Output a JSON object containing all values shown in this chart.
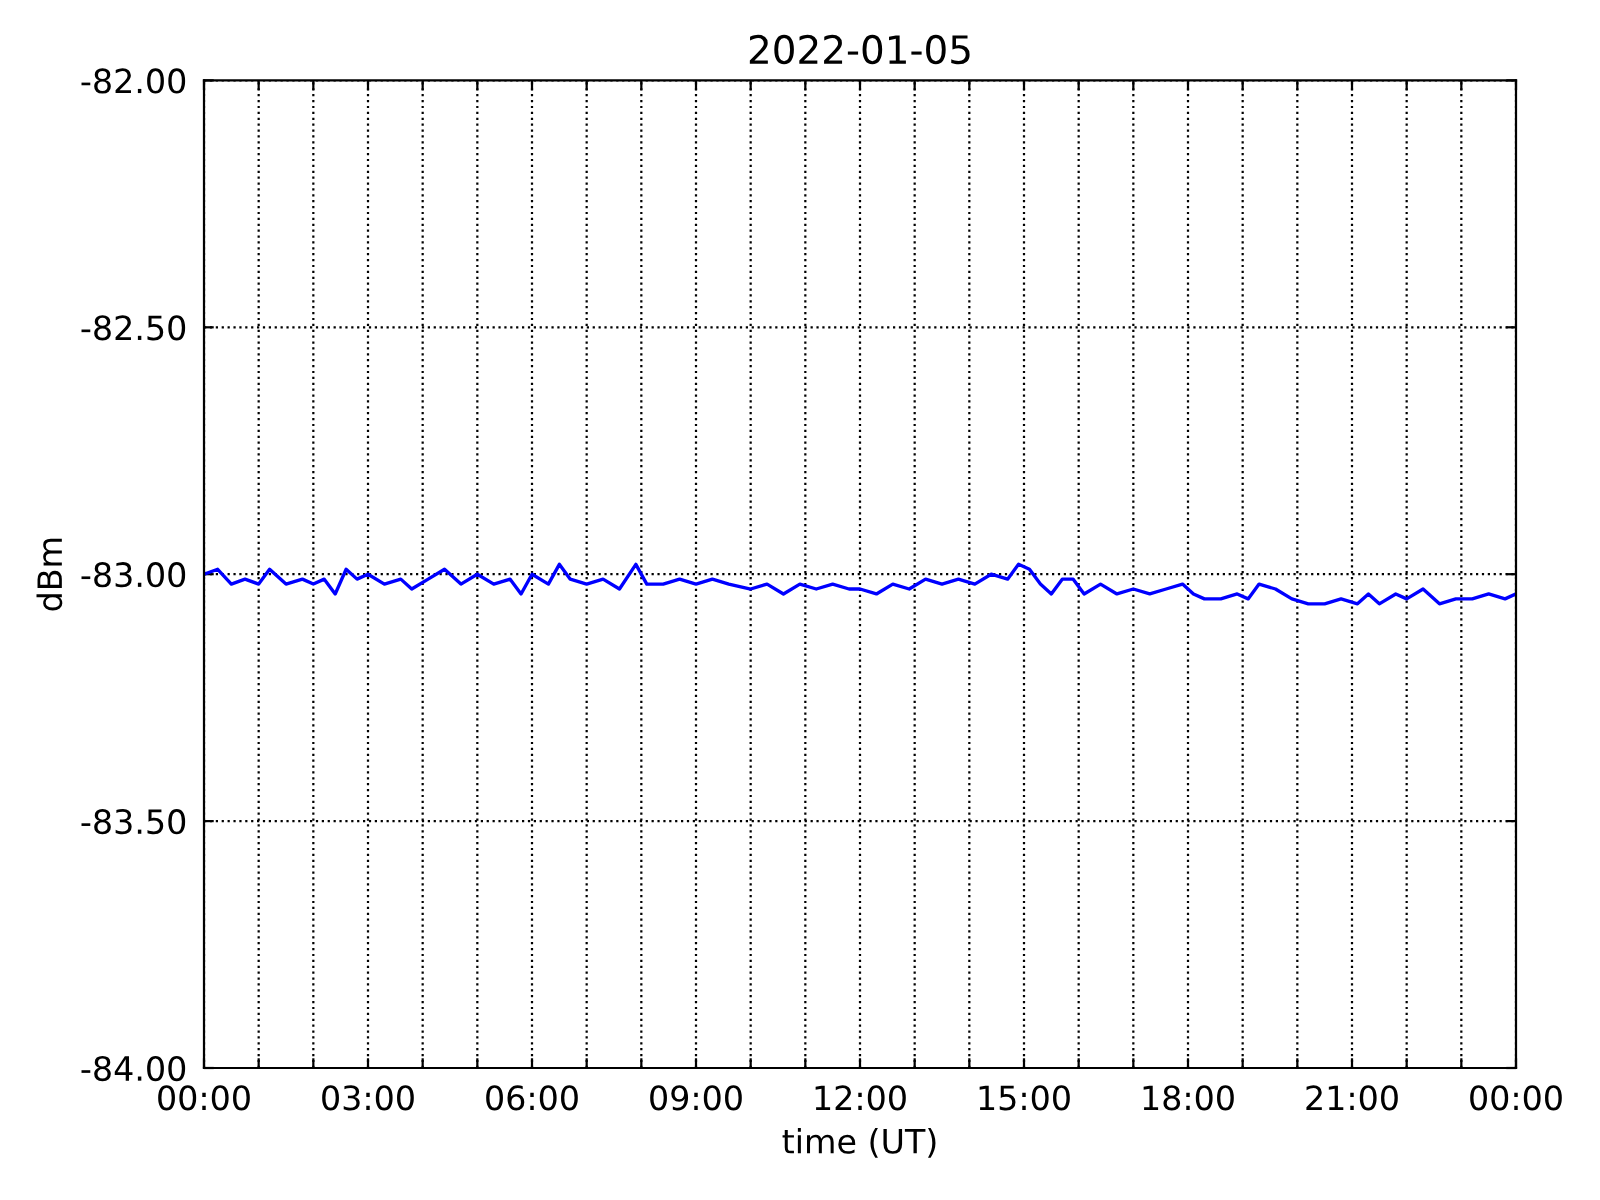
{
  "chart_data": {
    "type": "line",
    "title": "2022-01-05",
    "xlabel": "time (UT)",
    "ylabel": "dBm",
    "x": [
      0.0,
      0.25,
      0.5,
      0.75,
      1.0,
      1.2,
      1.5,
      1.8,
      2.0,
      2.2,
      2.4,
      2.6,
      2.8,
      3.0,
      3.3,
      3.6,
      3.8,
      4.1,
      4.4,
      4.7,
      5.0,
      5.3,
      5.6,
      5.8,
      6.0,
      6.3,
      6.5,
      6.7,
      7.0,
      7.3,
      7.6,
      7.9,
      8.1,
      8.4,
      8.7,
      9.0,
      9.3,
      9.6,
      10.0,
      10.3,
      10.6,
      10.9,
      11.2,
      11.5,
      11.8,
      12.0,
      12.3,
      12.6,
      12.9,
      13.2,
      13.5,
      13.8,
      14.1,
      14.4,
      14.7,
      14.9,
      15.1,
      15.3,
      15.5,
      15.7,
      15.9,
      16.1,
      16.4,
      16.7,
      17.0,
      17.3,
      17.6,
      17.9,
      18.1,
      18.3,
      18.6,
      18.9,
      19.1,
      19.3,
      19.6,
      19.9,
      20.2,
      20.5,
      20.8,
      21.1,
      21.3,
      21.5,
      21.8,
      22.0,
      22.3,
      22.6,
      22.9,
      23.2,
      23.5,
      23.8,
      24.0
    ],
    "series": [
      {
        "color": "#0000ff",
        "values": [
          -83.0,
          -82.99,
          -83.02,
          -83.01,
          -83.02,
          -82.99,
          -83.02,
          -83.01,
          -83.02,
          -83.01,
          -83.04,
          -82.99,
          -83.01,
          -83.0,
          -83.02,
          -83.01,
          -83.03,
          -83.01,
          -82.99,
          -83.02,
          -83.0,
          -83.02,
          -83.01,
          -83.04,
          -83.0,
          -83.02,
          -82.98,
          -83.01,
          -83.02,
          -83.01,
          -83.03,
          -82.98,
          -83.02,
          -83.02,
          -83.01,
          -83.02,
          -83.01,
          -83.02,
          -83.03,
          -83.02,
          -83.04,
          -83.02,
          -83.03,
          -83.02,
          -83.03,
          -83.03,
          -83.04,
          -83.02,
          -83.03,
          -83.01,
          -83.02,
          -83.01,
          -83.02,
          -83.0,
          -83.01,
          -82.98,
          -82.99,
          -83.02,
          -83.04,
          -83.01,
          -83.01,
          -83.04,
          -83.02,
          -83.04,
          -83.03,
          -83.04,
          -83.03,
          -83.02,
          -83.04,
          -83.05,
          -83.05,
          -83.04,
          -83.05,
          -83.02,
          -83.03,
          -83.05,
          -83.06,
          -83.06,
          -83.05,
          -83.06,
          -83.04,
          -83.06,
          -83.04,
          -83.05,
          -83.03,
          -83.06,
          -83.05,
          -83.05,
          -83.04,
          -83.05,
          -83.04
        ]
      }
    ],
    "xlim": [
      0,
      24
    ],
    "xticks": [
      {
        "value": 0,
        "label": "00:00"
      },
      {
        "value": 1,
        "label": null
      },
      {
        "value": 2,
        "label": null
      },
      {
        "value": 3,
        "label": "03:00"
      },
      {
        "value": 4,
        "label": null
      },
      {
        "value": 5,
        "label": null
      },
      {
        "value": 6,
        "label": "06:00"
      },
      {
        "value": 7,
        "label": null
      },
      {
        "value": 8,
        "label": null
      },
      {
        "value": 9,
        "label": "09:00"
      },
      {
        "value": 10,
        "label": null
      },
      {
        "value": 11,
        "label": null
      },
      {
        "value": 12,
        "label": "12:00"
      },
      {
        "value": 13,
        "label": null
      },
      {
        "value": 14,
        "label": null
      },
      {
        "value": 15,
        "label": "15:00"
      },
      {
        "value": 16,
        "label": null
      },
      {
        "value": 17,
        "label": null
      },
      {
        "value": 18,
        "label": "18:00"
      },
      {
        "value": 19,
        "label": null
      },
      {
        "value": 20,
        "label": null
      },
      {
        "value": 21,
        "label": "21:00"
      },
      {
        "value": 22,
        "label": null
      },
      {
        "value": 23,
        "label": null
      },
      {
        "value": 24,
        "label": "00:00"
      }
    ],
    "ylim": [
      -84,
      -82
    ],
    "yticks": [
      {
        "value": -84,
        "label": "-84.00"
      },
      {
        "value": -83.5,
        "label": "-83.50"
      },
      {
        "value": -83,
        "label": "-83.00"
      },
      {
        "value": -82.5,
        "label": "-82.50"
      },
      {
        "value": -82,
        "label": "-82.00"
      }
    ],
    "grid": true,
    "line_style": "solid",
    "marker": "none"
  }
}
